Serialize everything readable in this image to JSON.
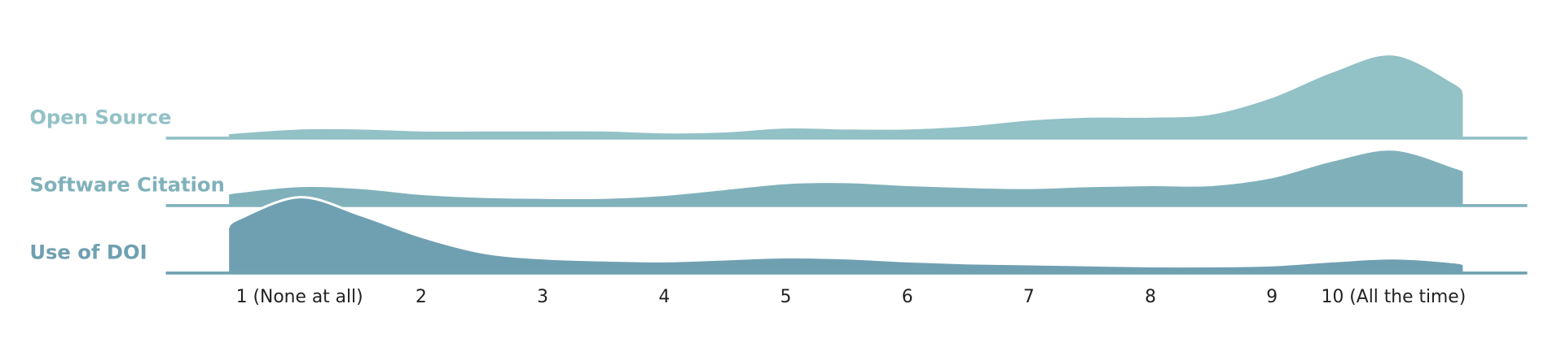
{
  "chart_data": {
    "type": "ridgeline",
    "x": [
      0.41,
      0.5,
      1,
      1.5,
      2,
      2.5,
      3,
      3.5,
      4,
      4.5,
      5,
      5.5,
      6,
      6.5,
      7,
      7.5,
      8,
      8.5,
      9,
      9.5,
      10,
      10.5,
      10.58
    ],
    "xlim": [
      -0.1,
      11.1
    ],
    "xticks": [
      {
        "value": 1,
        "label": "1 (None at all)"
      },
      2,
      3,
      4,
      5,
      6,
      7,
      8,
      9,
      {
        "value": 10,
        "label": "10 (All the time)"
      }
    ],
    "series": [
      {
        "name": "Open Source",
        "color": "#92c1c6",
        "values": [
          0.05,
          0.06,
          0.1,
          0.1,
          0.08,
          0.08,
          0.08,
          0.08,
          0.06,
          0.07,
          0.11,
          0.1,
          0.1,
          0.13,
          0.19,
          0.22,
          0.22,
          0.25,
          0.42,
          0.68,
          0.85,
          0.56,
          0.45
        ]
      },
      {
        "name": "Software Citation",
        "color": "#80b1bb",
        "values": [
          0.12,
          0.14,
          0.2,
          0.18,
          0.12,
          0.09,
          0.08,
          0.08,
          0.11,
          0.17,
          0.23,
          0.24,
          0.21,
          0.19,
          0.18,
          0.2,
          0.21,
          0.21,
          0.29,
          0.46,
          0.57,
          0.39,
          0.35
        ]
      },
      {
        "name": "Use of DOI",
        "color": "#6fa0b1",
        "values": [
          0.46,
          0.55,
          0.77,
          0.59,
          0.37,
          0.21,
          0.15,
          0.13,
          0.12,
          0.14,
          0.16,
          0.15,
          0.12,
          0.1,
          0.09,
          0.08,
          0.07,
          0.07,
          0.08,
          0.12,
          0.15,
          0.11,
          0.08
        ]
      }
    ]
  }
}
